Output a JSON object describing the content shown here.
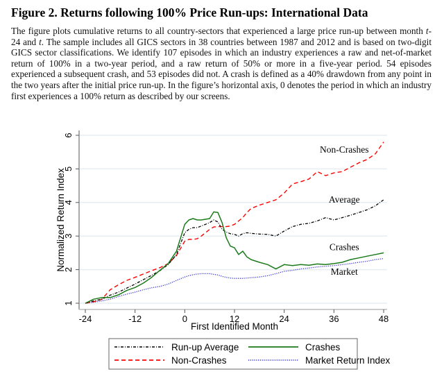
{
  "figure": {
    "title": "Figure 2. Returns following 100% Price Run-ups: International Data",
    "caption_parts": [
      {
        "text": "The figure plots cumulative returns to all country-sectors that experienced a large price run-up between month ",
        "italic": false
      },
      {
        "text": "t",
        "italic": true
      },
      {
        "text": "-24 and ",
        "italic": false
      },
      {
        "text": "t",
        "italic": true
      },
      {
        "text": ". The sample includes all GICS sectors in 38 countries between 1987 and 2012 and is based on two-digit GICS sector classifications. We identify 107 episodes in which an industry experiences a raw and net-of-market return of 100% in a two-year period, and a raw return of 50% or more in a five-year period. 54 episodes experienced a subsequent crash, and 53 episodes did not. A crash is defined as a 40% drawdown from any point in the two years after the initial price run-up. In the figure’s horizontal axis, 0 denotes the period in which an industry first experiences a 100% return as described by our screens.",
        "italic": false
      }
    ]
  },
  "chart_data": {
    "type": "line",
    "title": "",
    "xlabel": "First Identified Month",
    "ylabel": "Normalized Return Index",
    "xlim": [
      -24,
      48
    ],
    "ylim": [
      1,
      6
    ],
    "xticks": [
      -24,
      -12,
      0,
      12,
      24,
      36,
      48
    ],
    "yticks": [
      1,
      2,
      3,
      4,
      5,
      6
    ],
    "grid": "horizontal",
    "legend_position": "bottom",
    "x": [
      -24,
      -22,
      -20,
      -18,
      -16,
      -14,
      -12,
      -10,
      -8,
      -6,
      -4,
      -2,
      0,
      1,
      2,
      3,
      4,
      5,
      6,
      7,
      8,
      9,
      10,
      11,
      12,
      13,
      14,
      15,
      16,
      18,
      20,
      22,
      24,
      26,
      28,
      30,
      32,
      34,
      36,
      38,
      40,
      42,
      44,
      46,
      48
    ],
    "series": [
      {
        "name": "Run-up Average",
        "key": "average",
        "color": "#000000",
        "dash": "dashdot",
        "values": [
          1.0,
          1.07,
          1.12,
          1.24,
          1.33,
          1.45,
          1.57,
          1.7,
          1.83,
          1.97,
          2.15,
          2.45,
          3.1,
          3.2,
          3.25,
          3.25,
          3.3,
          3.35,
          3.4,
          3.48,
          3.42,
          3.2,
          3.12,
          3.07,
          3.05,
          3.0,
          3.07,
          3.1,
          3.08,
          3.06,
          3.05,
          3.0,
          3.15,
          3.28,
          3.35,
          3.38,
          3.45,
          3.55,
          3.48,
          3.55,
          3.62,
          3.7,
          3.78,
          3.9,
          4.08
        ]
      },
      {
        "name": "Non-Crashes",
        "key": "noncrash",
        "color": "#ff0000",
        "dash": "dashed",
        "values": [
          1.0,
          1.04,
          1.12,
          1.4,
          1.55,
          1.68,
          1.77,
          1.87,
          1.97,
          2.06,
          2.18,
          2.42,
          2.85,
          2.9,
          2.9,
          2.92,
          3.0,
          3.1,
          3.2,
          3.27,
          3.28,
          3.28,
          3.28,
          3.3,
          3.35,
          3.45,
          3.55,
          3.7,
          3.82,
          3.92,
          4.0,
          4.08,
          4.28,
          4.55,
          4.62,
          4.7,
          4.92,
          4.8,
          4.88,
          4.92,
          5.05,
          5.18,
          5.28,
          5.45,
          5.8
        ]
      },
      {
        "name": "Crashes",
        "key": "crash",
        "color": "#1a7a1a",
        "dash": "solid",
        "values": [
          1.0,
          1.12,
          1.17,
          1.17,
          1.25,
          1.38,
          1.47,
          1.6,
          1.77,
          1.98,
          2.18,
          2.55,
          3.35,
          3.48,
          3.52,
          3.48,
          3.48,
          3.5,
          3.52,
          3.72,
          3.7,
          3.4,
          2.95,
          2.7,
          2.65,
          2.45,
          2.55,
          2.38,
          2.3,
          2.22,
          2.15,
          2.02,
          2.15,
          2.12,
          2.15,
          2.13,
          2.17,
          2.15,
          2.18,
          2.22,
          2.3,
          2.35,
          2.4,
          2.45,
          2.5
        ]
      },
      {
        "name": "Market Return Index",
        "key": "market",
        "color": "#3333dd",
        "dash": "dotted",
        "values": [
          1.0,
          1.03,
          1.07,
          1.12,
          1.2,
          1.27,
          1.33,
          1.4,
          1.46,
          1.5,
          1.57,
          1.68,
          1.78,
          1.82,
          1.85,
          1.87,
          1.88,
          1.88,
          1.88,
          1.86,
          1.84,
          1.8,
          1.77,
          1.75,
          1.74,
          1.74,
          1.74,
          1.75,
          1.76,
          1.78,
          1.82,
          1.88,
          1.95,
          1.98,
          2.02,
          2.05,
          2.08,
          2.1,
          2.12,
          2.15,
          2.18,
          2.22,
          2.25,
          2.3,
          2.33
        ]
      }
    ],
    "annotations": [
      {
        "text": "Non-Crashes",
        "x": 38.5,
        "y": 5.48
      },
      {
        "text": "Average",
        "x": 38.5,
        "y": 4.0
      },
      {
        "text": "Crashes",
        "x": 38.5,
        "y": 2.58
      },
      {
        "text": "Market",
        "x": 38.5,
        "y": 1.85
      }
    ],
    "legend": [
      {
        "label": "Run-up Average",
        "key": "average"
      },
      {
        "label": "Crashes",
        "key": "crash"
      },
      {
        "label": "Non-Crashes",
        "key": "noncrash"
      },
      {
        "label": "Market Return Index",
        "key": "market"
      }
    ]
  }
}
